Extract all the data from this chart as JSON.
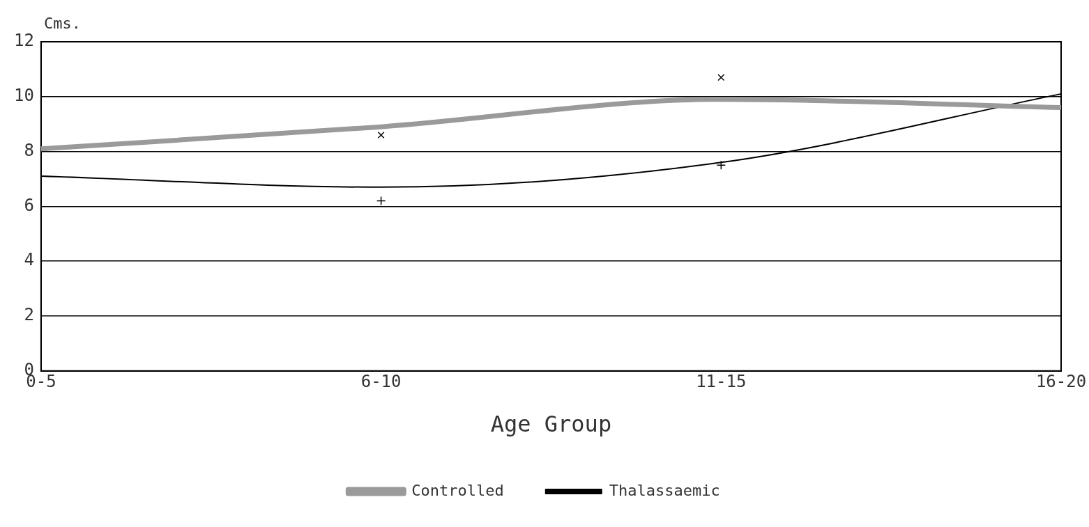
{
  "chart_data": {
    "type": "line",
    "xlabel": "Age Group",
    "ylabel": "Cms.",
    "categories": [
      "0-5",
      "6-10",
      "11-15",
      "16-20"
    ],
    "series": [
      {
        "name": "Controlled",
        "color": "#9a9a9a",
        "values": [
          8.1,
          8.9,
          9.9,
          9.6
        ]
      },
      {
        "name": "Thalassaemic",
        "color": "#000000",
        "values": [
          7.1,
          6.7,
          7.6,
          10.1
        ]
      },
      {
        "type": "scatter",
        "marker": "cross",
        "color": "#000000",
        "x": [
          "6-10",
          "11-15"
        ],
        "values": [
          8.6,
          10.7
        ]
      },
      {
        "type": "scatter",
        "marker": "plus",
        "color": "#000000",
        "x": [
          "6-10",
          "11-15"
        ],
        "values": [
          6.2,
          7.5
        ]
      }
    ],
    "ylim": [
      0,
      12
    ],
    "yticks": [
      0,
      2,
      4,
      6,
      8,
      10,
      12
    ],
    "grid": "y",
    "legend": "bottom"
  }
}
